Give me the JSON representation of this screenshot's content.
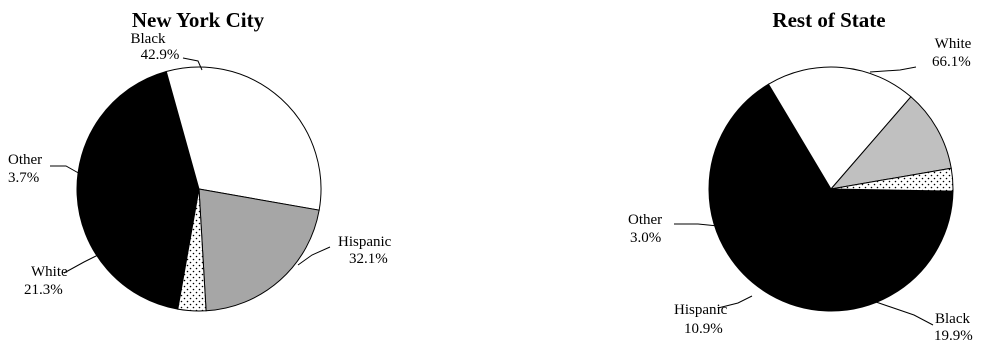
{
  "chart_data": [
    {
      "type": "pie",
      "title": "New York City",
      "slices": [
        {
          "label": "Black",
          "value": 42.9,
          "value_text": "42.9%",
          "fill": "#000000"
        },
        {
          "label": "Hispanic",
          "value": 32.1,
          "value_text": "32.1%",
          "fill": "#ffffff"
        },
        {
          "label": "White",
          "value": 21.3,
          "value_text": "21.3%",
          "fill": "#a6a6a6"
        },
        {
          "label": "Other",
          "value": 3.7,
          "value_text": "3.7%",
          "fill": "dotted"
        }
      ]
    },
    {
      "type": "pie",
      "title": "Rest of State",
      "slices": [
        {
          "label": "White",
          "value": 66.1,
          "value_text": "66.1%",
          "fill": "#000000"
        },
        {
          "label": "Black",
          "value": 19.9,
          "value_text": "19.9%",
          "fill": "#ffffff"
        },
        {
          "label": "Hispanic",
          "value": 10.9,
          "value_text": "10.9%",
          "fill": "#c0c0c0"
        },
        {
          "label": "Other",
          "value": 3.0,
          "value_text": "3.0%",
          "fill": "dotted"
        }
      ]
    }
  ]
}
